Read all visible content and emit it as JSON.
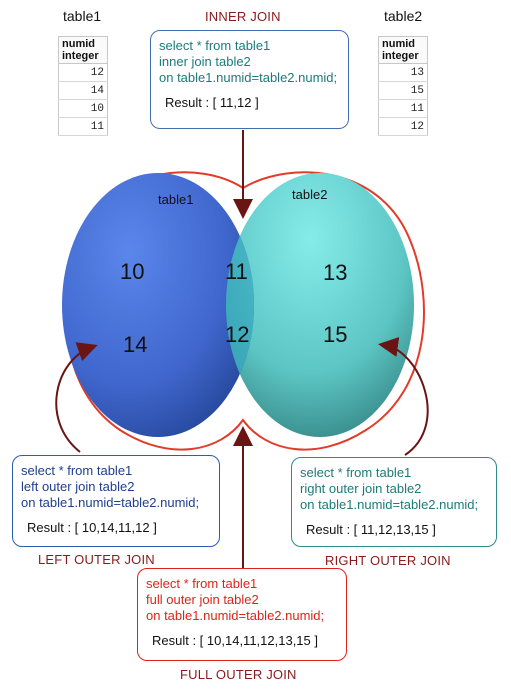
{
  "table1": {
    "title": "table1",
    "header": [
      "numid",
      "integer"
    ],
    "rows": [
      "12",
      "14",
      "10",
      "11"
    ]
  },
  "table2": {
    "title": "table2",
    "header": [
      "numid",
      "integer"
    ],
    "rows": [
      "13",
      "15",
      "11",
      "12"
    ]
  },
  "venn": {
    "left_label": "table1",
    "right_label": "table2",
    "left_only": [
      "10",
      "14"
    ],
    "intersection": [
      "11",
      "12"
    ],
    "right_only": [
      "13",
      "15"
    ],
    "left_color": "#3d63c8",
    "right_color": "#5cc9c7",
    "outline_color": "#e23b2a"
  },
  "inner": {
    "title": "INNER JOIN",
    "lines": [
      "select * from table1",
      "inner join table2",
      "on table1.numid=table2.numid;"
    ],
    "result": "Result : [ 11,12 ]",
    "text_color": "#1c7b7a",
    "border_color": "#3f6fae"
  },
  "left_outer": {
    "title": "LEFT OUTER JOIN",
    "lines": [
      "select * from table1",
      "left outer join table2",
      "on table1.numid=table2.numid;"
    ],
    "result": "Result : [ 10,14,11,12 ]",
    "text_color": "#1d3f8c",
    "border_color": "#2a5fae"
  },
  "right_outer": {
    "title": "RIGHT OUTER JOIN",
    "lines": [
      "select * from table1",
      "right outer join table2",
      "on table1.numid=table2.numid;"
    ],
    "result": "Result : [ 11,12,13,15 ]",
    "text_color": "#1c7b7a",
    "border_color": "#2f8a8a"
  },
  "full_outer": {
    "title": "FULL OUTER JOIN",
    "lines": [
      "select * from table1",
      "full outer join table2",
      "on table1.numid=table2.numid;"
    ],
    "result": "Result : [ 10,14,11,12,13,15 ]",
    "text_color": "#e0221c",
    "border_color": "#e0221c"
  },
  "arrow_color": "#6b1414"
}
